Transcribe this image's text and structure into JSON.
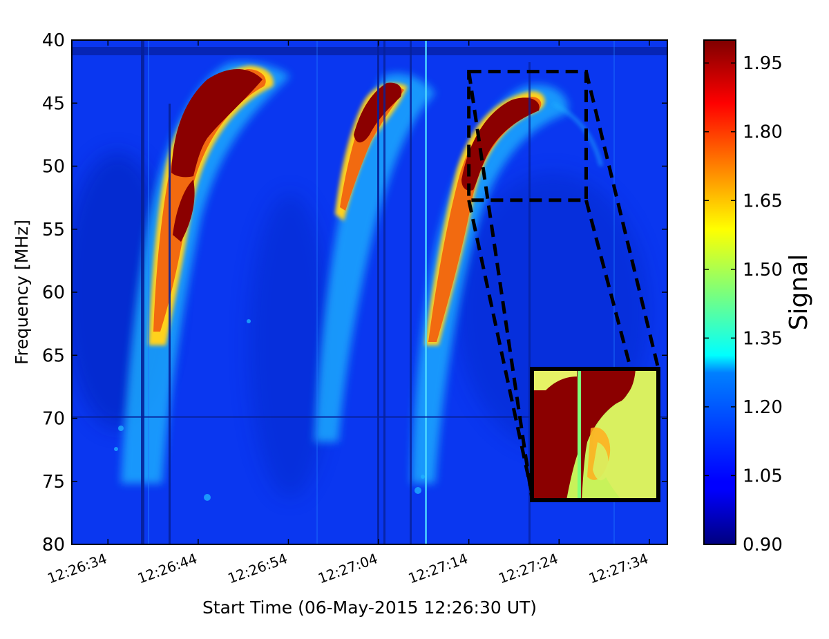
{
  "chart_data": {
    "type": "heatmap",
    "title": "",
    "xlabel": "Start Time (06-May-2015 12:26:30 UT)",
    "ylabel": "Frequency  [MHz]",
    "x_tick_labels": [
      "12:26:34",
      "12:26:44",
      "12:26:54",
      "12:27:04",
      "12:27:14",
      "12:27:24",
      "12:27:34"
    ],
    "y_tick_labels": [
      "40",
      "45",
      "50",
      "55",
      "60",
      "65",
      "70",
      "75",
      "80"
    ],
    "xlim": [
      "12:26:30",
      "12:27:36"
    ],
    "ylim": [
      80,
      40
    ],
    "colorbar": {
      "label": "Signal",
      "range": [
        0.9,
        2.0
      ],
      "tick_labels": [
        "0.90",
        "1.05",
        "1.20",
        "1.35",
        "1.50",
        "1.65",
        "1.80",
        "1.95"
      ],
      "colormap": "jet"
    },
    "bursts": [
      {
        "start_time": "12:26:39",
        "top_time": "12:26:51",
        "top_freq": 42.5,
        "bottom_freq": 75
      },
      {
        "start_time": "12:26:58",
        "top_time": "12:27:04",
        "top_freq": 43.5,
        "bottom_freq": 76
      },
      {
        "start_time": "12:27:08",
        "top_time": "12:27:20",
        "top_freq": 44.5,
        "bottom_freq": 77
      }
    ],
    "zoom_box": {
      "time_range": [
        "12:27:14",
        "12:27:27"
      ],
      "freq_range": [
        42.5,
        52.7
      ]
    },
    "inset": {
      "content": "zoomed view of boxed region",
      "position": "bottom-right"
    }
  }
}
